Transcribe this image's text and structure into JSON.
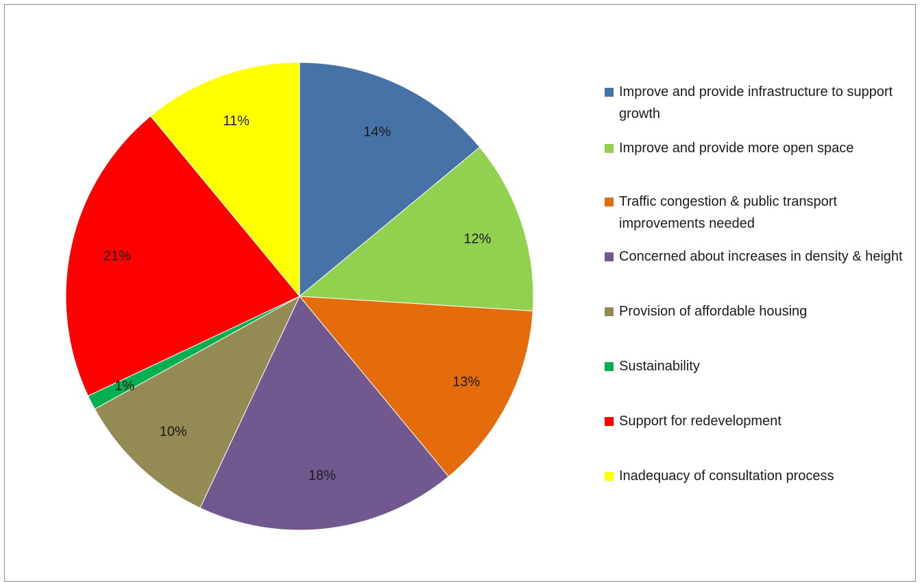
{
  "chart_data": {
    "type": "pie",
    "title": "",
    "slices": [
      {
        "label": "Improve and provide infrastructure to support growth",
        "value": 14,
        "display": "14%",
        "color": "#4572A7"
      },
      {
        "label": "Improve and provide more open space",
        "value": 12,
        "display": "12%",
        "color": "#92D050"
      },
      {
        "label": "Traffic congestion & public transport improvements needed",
        "value": 13,
        "display": "13%",
        "color": "#E46C0A"
      },
      {
        "label": "Concerned about increases in density & height",
        "value": 18,
        "display": "18%",
        "color": "#71588F"
      },
      {
        "label": "Provision of affordable housing",
        "value": 10,
        "display": "10%",
        "color": "#948A54"
      },
      {
        "label": "Sustainability",
        "value": 1,
        "display": "1%",
        "color": "#00B050"
      },
      {
        "label": "Support for redevelopment",
        "value": 21,
        "display": "21%",
        "color": "#FF0000"
      },
      {
        "label": "Inadequacy of consultation process",
        "value": 11,
        "display": "11%",
        "color": "#FFFF00"
      }
    ],
    "start_angle": "12 o'clock",
    "direction": "clockwise",
    "legend_position": "right"
  }
}
